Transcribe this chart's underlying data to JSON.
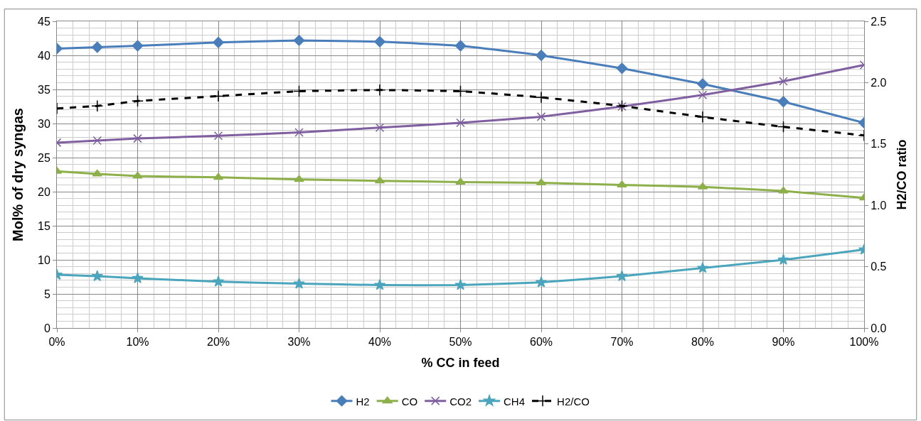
{
  "chart_data": {
    "type": "line",
    "xlabel": "% CC in feed",
    "ylabel": "Mol% of dry syngas",
    "y2label": "H2/CO ratio",
    "x": [
      0,
      5,
      10,
      20,
      30,
      40,
      50,
      60,
      70,
      80,
      90,
      100
    ],
    "xlim": [
      0,
      100
    ],
    "xticks": [
      {
        "value": 0,
        "label": "0%"
      },
      {
        "value": 10,
        "label": "10%"
      },
      {
        "value": 20,
        "label": "20%"
      },
      {
        "value": 30,
        "label": "30%"
      },
      {
        "value": 40,
        "label": "40%"
      },
      {
        "value": 50,
        "label": "50%"
      },
      {
        "value": 60,
        "label": "60%"
      },
      {
        "value": 70,
        "label": "70%"
      },
      {
        "value": 80,
        "label": "80%"
      },
      {
        "value": 90,
        "label": "90%"
      },
      {
        "value": 100,
        "label": "100%"
      }
    ],
    "ylim": [
      0,
      45
    ],
    "yticks": [
      0,
      5,
      10,
      15,
      20,
      25,
      30,
      35,
      40,
      45
    ],
    "y2lim": [
      0,
      2.5
    ],
    "y2ticks": [
      {
        "value": 0,
        "label": "0.0"
      },
      {
        "value": 0.5,
        "label": "0.5"
      },
      {
        "value": 1,
        "label": "1.0"
      },
      {
        "value": 1.5,
        "label": "1.5"
      },
      {
        "value": 2,
        "label": "2.0"
      },
      {
        "value": 2.5,
        "label": "2.5"
      }
    ],
    "grid": true,
    "legend": "bottom",
    "series": [
      {
        "name": "H2",
        "color": "#4a7ebb",
        "marker": "diamond",
        "line_style": "solid",
        "values": [
          41.0,
          41.2,
          41.4,
          41.9,
          42.2,
          42.0,
          41.4,
          40.0,
          38.1,
          35.8,
          33.2,
          30.1
        ]
      },
      {
        "name": "CO",
        "color": "#8db04a",
        "marker": "triangle",
        "line_style": "solid",
        "values": [
          23.0,
          22.6,
          22.3,
          22.1,
          21.8,
          21.6,
          21.4,
          21.3,
          21.0,
          20.7,
          20.1,
          19.1
        ]
      },
      {
        "name": "CO2",
        "color": "#7f5fa0",
        "marker": "cross",
        "line_style": "solid",
        "values": [
          27.2,
          27.5,
          27.8,
          28.2,
          28.7,
          29.4,
          30.1,
          31.0,
          32.5,
          34.2,
          36.2,
          38.6
        ]
      },
      {
        "name": "CH4",
        "color": "#4ba5bd",
        "marker": "star",
        "line_style": "solid",
        "values": [
          7.8,
          7.6,
          7.3,
          6.8,
          6.5,
          6.3,
          6.3,
          6.7,
          7.6,
          8.8,
          10.0,
          11.5
        ]
      },
      {
        "name": "H2/CO",
        "color": "#000000",
        "marker": "cross",
        "line_style": "dashed",
        "axis": "y2",
        "values": [
          1.79,
          1.81,
          1.85,
          1.89,
          1.93,
          1.94,
          1.93,
          1.88,
          1.81,
          1.72,
          1.64,
          1.57
        ]
      }
    ]
  }
}
